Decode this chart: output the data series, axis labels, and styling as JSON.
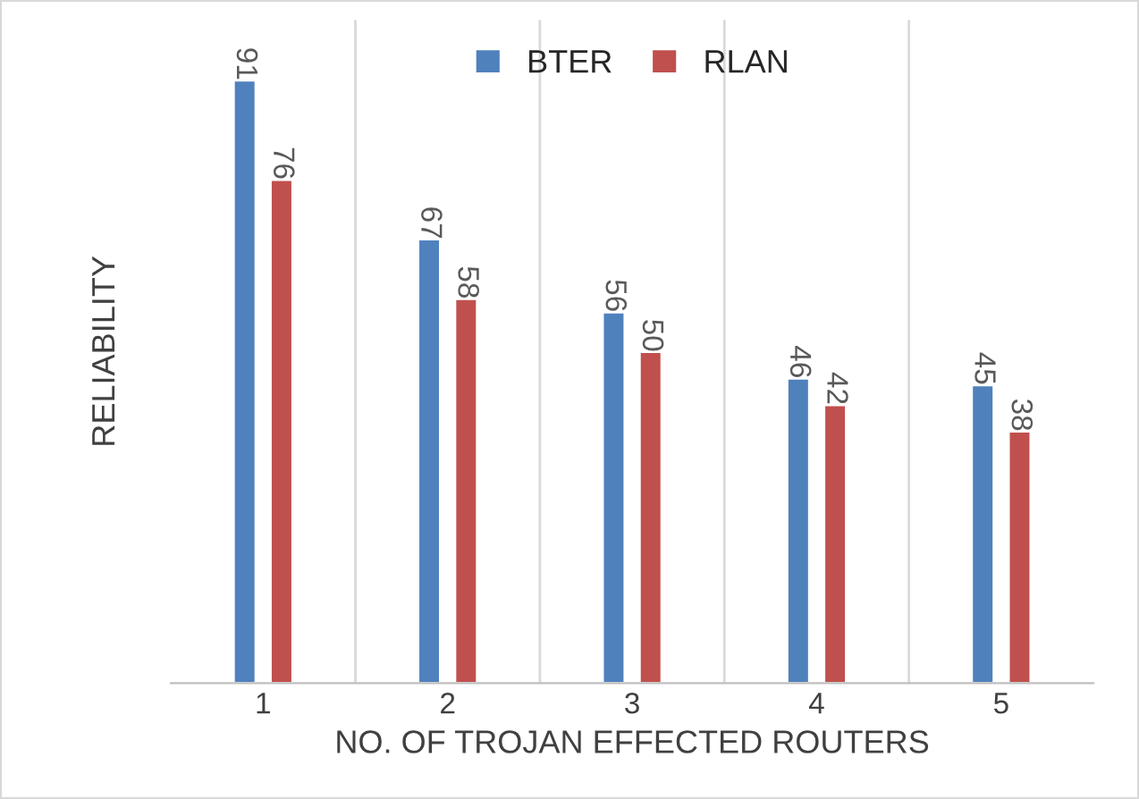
{
  "chart_data": {
    "type": "bar",
    "xlabel": "NO. OF TROJAN EFFECTED ROUTERS",
    "ylabel": "RELIABILITY",
    "categories": [
      "1",
      "2",
      "3",
      "4",
      "5"
    ],
    "series": [
      {
        "name": "BTER",
        "color": "#4f81bd",
        "values": [
          91,
          67,
          56,
          46,
          45
        ]
      },
      {
        "name": "RLAN",
        "color": "#c0504d",
        "values": [
          76,
          58,
          50,
          42,
          38
        ]
      }
    ],
    "data_labels": true,
    "grid": "x",
    "legend": "top"
  }
}
